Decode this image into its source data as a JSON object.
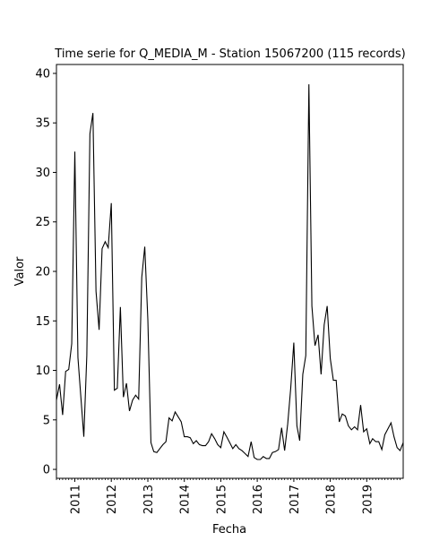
{
  "chart_data": {
    "type": "line",
    "title": "Time serie for Q_MEDIA_M - Station 15067200 (115 records)",
    "xlabel": "Fecha",
    "ylabel": "Valor",
    "ylim": [
      -0.9,
      40.9
    ],
    "xlim": [
      "2010-07-01",
      "2020-01-01"
    ],
    "yticks": [
      0,
      5,
      10,
      15,
      20,
      25,
      30,
      35,
      40
    ],
    "xticks": [
      "2011",
      "2012",
      "2013",
      "2014",
      "2015",
      "2016",
      "2017",
      "2018",
      "2019"
    ],
    "grid": false,
    "legend": "none",
    "line_color": "#000000",
    "series": [
      {
        "x": [
          "2010-07-01",
          "2010-08-01",
          "2010-09-01",
          "2010-10-01",
          "2010-11-01",
          "2010-12-01",
          "2011-01-01",
          "2011-02-01",
          "2011-03-01",
          "2011-04-01",
          "2011-05-01",
          "2011-06-01",
          "2011-07-01",
          "2011-08-01",
          "2011-09-01",
          "2011-10-01",
          "2011-11-01",
          "2011-12-01",
          "2012-01-01",
          "2012-02-01",
          "2012-03-01",
          "2012-04-01",
          "2012-05-01",
          "2012-06-01",
          "2012-07-01",
          "2012-08-01",
          "2012-09-01",
          "2012-10-01",
          "2012-11-01",
          "2012-12-01",
          "2013-01-01",
          "2013-02-01",
          "2013-03-01",
          "2013-04-01",
          "2013-05-01",
          "2013-06-01",
          "2013-07-01",
          "2013-08-01",
          "2013-09-01",
          "2013-10-01",
          "2013-11-01",
          "2013-12-01",
          "2014-01-01",
          "2014-02-01",
          "2014-03-01",
          "2014-04-01",
          "2014-05-01",
          "2014-06-01",
          "2014-07-01",
          "2014-08-01",
          "2014-09-01",
          "2014-10-01",
          "2014-11-01",
          "2014-12-01",
          "2015-01-01",
          "2015-02-01",
          "2015-03-01",
          "2015-04-01",
          "2015-05-01",
          "2015-06-01",
          "2015-07-01",
          "2015-08-01",
          "2015-09-01",
          "2015-10-01",
          "2015-11-01",
          "2015-12-01",
          "2016-01-01",
          "2016-02-01",
          "2016-03-01",
          "2016-04-01",
          "2016-05-01",
          "2016-06-01",
          "2016-07-01",
          "2016-08-01",
          "2016-09-01",
          "2016-10-01",
          "2016-11-01",
          "2016-12-01",
          "2017-01-01",
          "2017-02-01",
          "2017-03-01",
          "2017-04-01",
          "2017-05-01",
          "2017-06-01",
          "2017-07-01",
          "2017-08-01",
          "2017-09-01",
          "2017-10-01",
          "2017-11-01",
          "2017-12-01",
          "2018-01-01",
          "2018-02-01",
          "2018-03-01",
          "2018-04-01",
          "2018-05-01",
          "2018-06-01",
          "2018-07-01",
          "2018-08-01",
          "2018-09-01",
          "2018-10-01",
          "2018-11-01",
          "2018-12-01",
          "2019-01-01",
          "2019-02-01",
          "2019-03-01",
          "2019-04-01",
          "2019-05-01",
          "2019-06-01",
          "2019-07-01",
          "2019-08-01",
          "2019-09-01",
          "2019-10-01",
          "2019-11-01",
          "2019-12-01",
          "2020-01-01"
        ],
        "values": [
          7.0,
          8.6,
          5.5,
          9.9,
          10.1,
          12.7,
          32.1,
          11.3,
          7.5,
          3.3,
          11.5,
          33.9,
          36.0,
          18.0,
          14.1,
          22.3,
          23.0,
          22.4,
          26.9,
          8.0,
          8.2,
          16.4,
          7.3,
          8.7,
          5.9,
          7.0,
          7.5,
          7.1,
          19.4,
          22.5,
          15.1,
          2.7,
          1.8,
          1.7,
          2.1,
          2.5,
          2.8,
          5.2,
          4.9,
          5.8,
          5.3,
          4.8,
          3.3,
          3.3,
          3.2,
          2.6,
          2.9,
          2.5,
          2.4,
          2.4,
          2.8,
          3.6,
          3.1,
          2.5,
          2.2,
          3.8,
          3.3,
          2.7,
          2.1,
          2.5,
          2.1,
          1.9,
          1.6,
          1.3,
          2.8,
          1.2,
          1.0,
          1.0,
          1.3,
          1.1,
          1.1,
          1.7,
          1.8,
          2.0,
          4.2,
          1.9,
          4.6,
          8.2,
          12.8,
          4.4,
          2.9,
          9.6,
          11.5,
          38.9,
          16.5,
          12.5,
          13.6,
          9.6,
          14.6,
          16.5,
          11.2,
          9.0,
          9.0,
          4.8,
          5.6,
          5.4,
          4.4,
          4.0,
          4.3,
          4.0,
          6.5,
          3.8,
          4.1,
          2.6,
          3.1,
          2.8,
          2.8,
          2.0,
          3.5,
          4.1,
          4.7,
          3.3,
          2.2,
          1.9,
          2.7
        ]
      }
    ]
  }
}
